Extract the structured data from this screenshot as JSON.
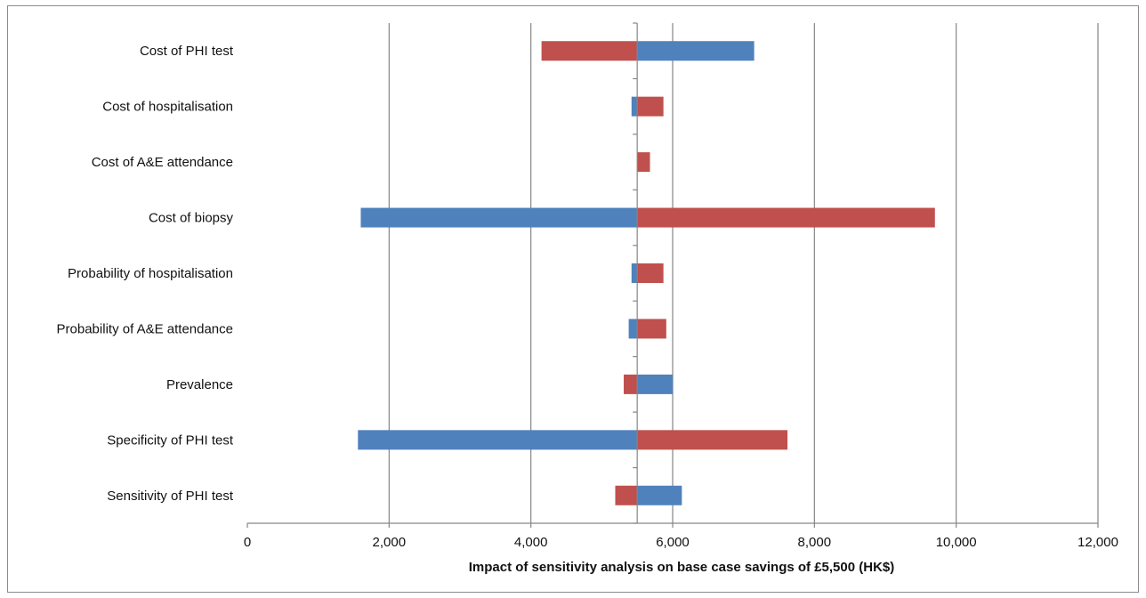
{
  "chart_data": {
    "type": "bar",
    "orientation": "horizontal",
    "subtype": "tornado",
    "title": "",
    "xlabel": "Impact of sensitivity analysis  on base case savings  of £5,500 (HK$)",
    "ylabel": "",
    "base_value": 5500,
    "xlim": [
      0,
      12000
    ],
    "xticks": [
      0,
      2000,
      4000,
      6000,
      8000,
      10000,
      12000
    ],
    "xtick_labels": [
      "0",
      "2,000",
      "4,000",
      "6,000",
      "8,000",
      "10,000",
      "12,000"
    ],
    "grid": "vertical",
    "legend": "none",
    "categories": [
      "Cost of PHI test",
      "Cost of hospitalisation",
      "Cost of A&E attendance",
      "Cost of biopsy",
      "Probability of hospitalisation",
      "Probability of A&E attendance",
      "Prevalence",
      "Specificity of PHI test",
      "Sensitivity of PHI test"
    ],
    "series": [
      {
        "color": "#4f81bd",
        "values": [
          7150,
          5420,
          5500,
          1600,
          5420,
          5380,
          6000,
          1560,
          6130
        ]
      },
      {
        "color": "#c0504d",
        "values": [
          4150,
          5870,
          5680,
          9700,
          5870,
          5910,
          5310,
          7620,
          5190
        ]
      }
    ]
  }
}
